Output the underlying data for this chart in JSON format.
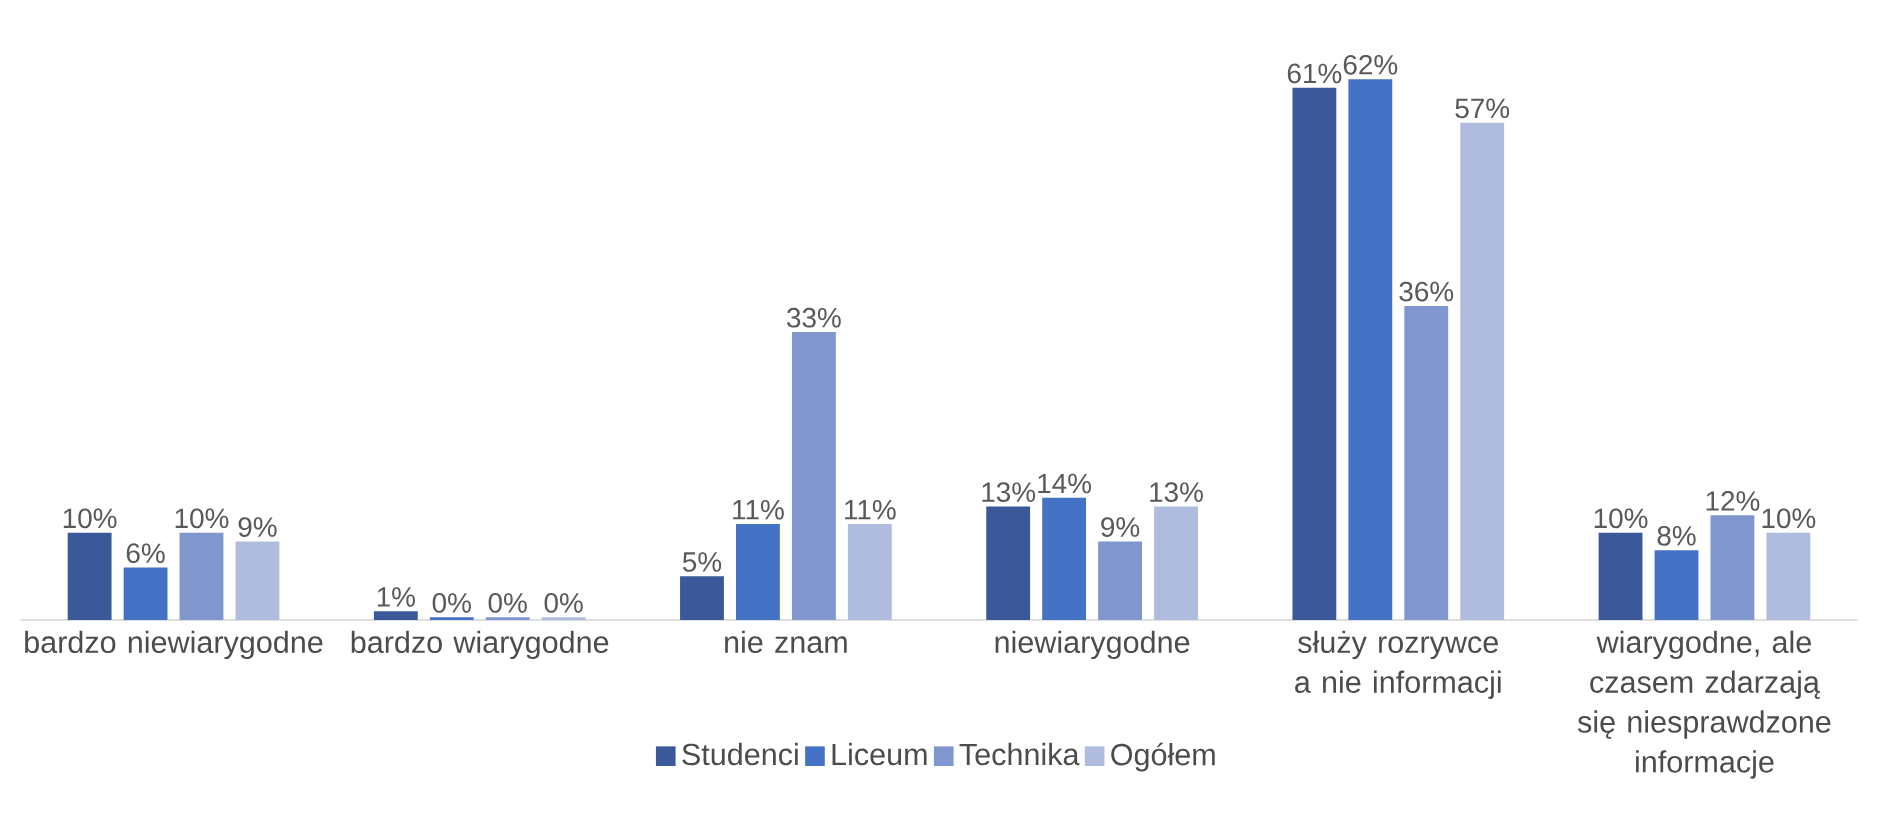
{
  "chart_data": {
    "type": "bar",
    "categories": [
      "bardzo niewiarygodne",
      "bardzo wiarygodne",
      "nie znam",
      "niewiarygodne",
      "służy rozrywce a nie informacji",
      "wiarygodne, ale czasem zdarzają się niesprawdzone informacje"
    ],
    "series": [
      {
        "name": "Studenci",
        "color": "#3b5998",
        "values": [
          10,
          1,
          5,
          13,
          61,
          10
        ],
        "value_labels": [
          "10%",
          "1%",
          "5%",
          "13%",
          "61%",
          "10%"
        ]
      },
      {
        "name": "Liceum",
        "color": "#4472c4",
        "values": [
          6,
          0.3,
          11,
          14,
          62,
          8
        ],
        "value_labels": [
          "6%",
          "0%",
          "11%",
          "14%",
          "62%",
          "8%"
        ]
      },
      {
        "name": "Technika",
        "color": "#7f96cf",
        "values": [
          10,
          0.3,
          33,
          9,
          36,
          12
        ],
        "value_labels": [
          "10%",
          "0%",
          "33%",
          "9%",
          "36%",
          "12%"
        ]
      },
      {
        "name": "Ogółem",
        "color": "#b0bcde",
        "values": [
          9,
          0.3,
          11,
          13,
          57,
          10
        ],
        "value_labels": [
          "9%",
          "0%",
          "11%",
          "13%",
          "57%",
          "10%"
        ]
      }
    ],
    "legend": "bottom"
  }
}
